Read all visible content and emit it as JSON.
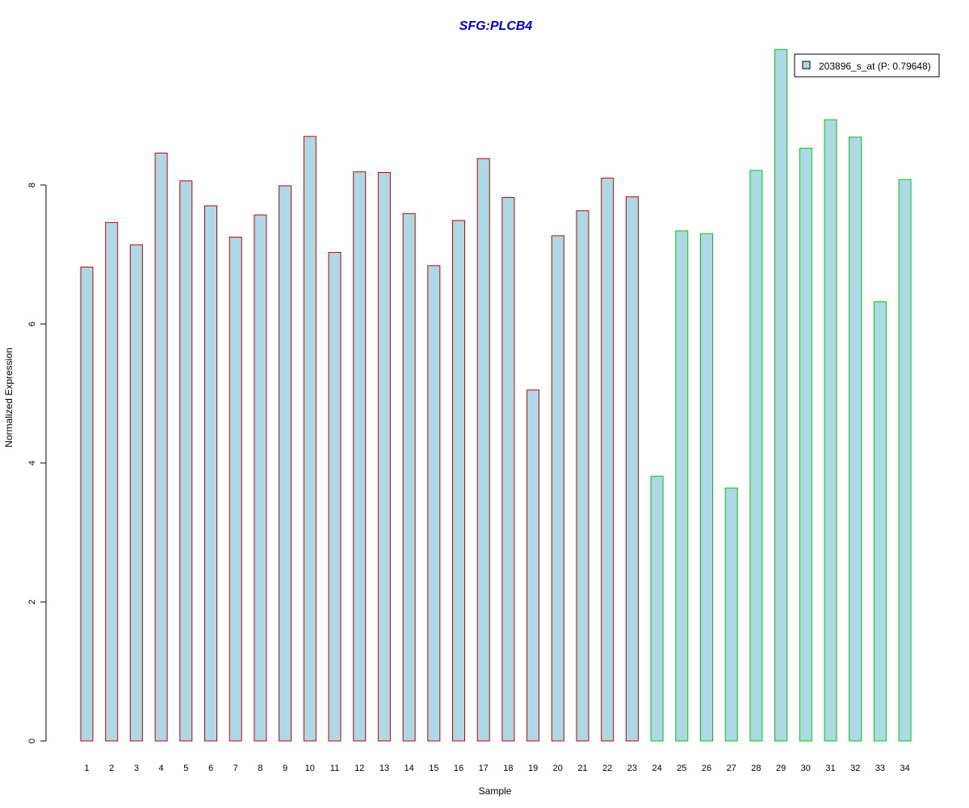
{
  "chart_data": {
    "type": "bar",
    "title": "SFG:PLCB4",
    "xlabel": "Sample",
    "ylabel": "Normalized Expression",
    "ylim": [
      0,
      10
    ],
    "yticks": [
      0,
      2,
      4,
      6,
      8
    ],
    "grid": false,
    "legend": {
      "position": "top-right",
      "entries": [
        "203896_s_at (P: 0.79648)"
      ]
    },
    "categories": [
      "1",
      "2",
      "3",
      "4",
      "5",
      "6",
      "7",
      "8",
      "9",
      "10",
      "11",
      "12",
      "13",
      "14",
      "15",
      "16",
      "17",
      "18",
      "19",
      "20",
      "21",
      "22",
      "23",
      "24",
      "25",
      "26",
      "27",
      "28",
      "29",
      "30",
      "31",
      "32",
      "33",
      "34"
    ],
    "series": [
      {
        "name": "203896_s_at (P: 0.79648)",
        "values": [
          6.82,
          7.46,
          7.14,
          8.46,
          8.06,
          7.7,
          7.25,
          7.57,
          7.99,
          8.7,
          7.03,
          8.19,
          8.18,
          7.59,
          6.84,
          7.49,
          8.38,
          7.82,
          5.05,
          7.27,
          7.63,
          8.1,
          7.83,
          3.81,
          7.34,
          7.3,
          3.64,
          8.21,
          9.95,
          8.53,
          8.94,
          8.69,
          6.32,
          8.08
        ]
      }
    ],
    "group_split": 23,
    "colors": {
      "fill": "#add8e6",
      "group1_border": "#cc0000",
      "group2_border": "#00cc00",
      "title": "#0000cc"
    }
  }
}
